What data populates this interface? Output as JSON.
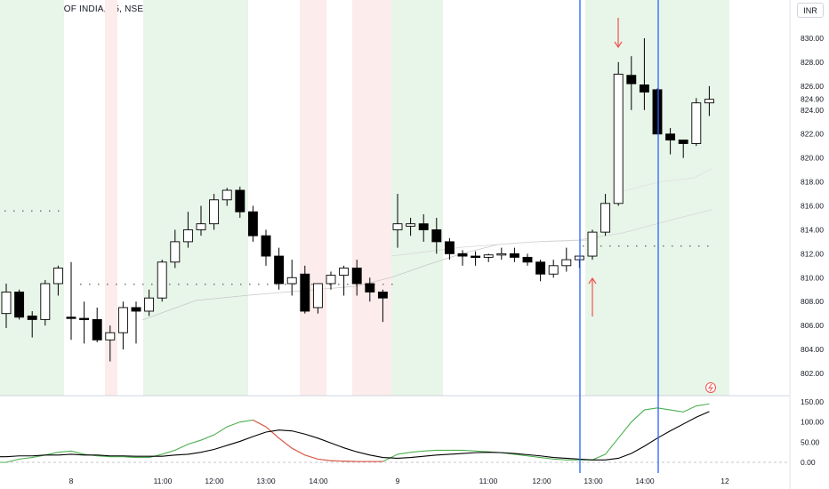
{
  "chart_title": "STATE BANK OF INDIA, 15, NSE",
  "currency_button": "INR",
  "price_axis": [
    "830.00",
    "828.00",
    "826.00",
    "824.90",
    "824.00",
    "822.00",
    "820.00",
    "818.00",
    "816.00",
    "814.00",
    "812.00",
    "810.00",
    "808.00",
    "806.00",
    "804.00",
    "802.00"
  ],
  "osc_axis": [
    "150.00",
    "100.00",
    "50.00",
    "0.00"
  ],
  "time_axis": [
    "8",
    "11:00",
    "12:00",
    "13:00",
    "14:00",
    "9",
    "11:00",
    "12:00",
    "13:00",
    "14:00",
    "12"
  ],
  "colors": {
    "up": "#ffffff",
    "down": "#000000",
    "vline": "#2962ff",
    "arrow": "#ef5350",
    "green_zone": "#e8f5e9",
    "red_zone": "#fdecec",
    "osc_fast": "#4caf50",
    "osc_slow": "#000000"
  },
  "chart_data": {
    "type": "candlestick",
    "ylim": [
      801,
      831
    ],
    "candles": [
      [
        807.0,
        809.5,
        805.8,
        808.8
      ],
      [
        808.8,
        809.0,
        806.5,
        806.7
      ],
      [
        806.8,
        807.2,
        805.0,
        806.5
      ],
      [
        806.5,
        809.8,
        806.0,
        809.5
      ],
      [
        809.5,
        811.0,
        808.5,
        810.8
      ],
      [
        806.7,
        811.3,
        804.8,
        806.6
      ],
      [
        806.6,
        808.0,
        804.5,
        806.5
      ],
      [
        806.5,
        807.5,
        804.6,
        804.8
      ],
      [
        804.8,
        806.0,
        803.0,
        805.4
      ],
      [
        805.4,
        808.0,
        804.0,
        807.5
      ],
      [
        807.5,
        808.0,
        804.5,
        807.2
      ],
      [
        807.2,
        809.0,
        806.8,
        808.3
      ],
      [
        808.3,
        811.5,
        808.0,
        811.3
      ],
      [
        811.3,
        814.0,
        810.8,
        813.0
      ],
      [
        813.0,
        815.5,
        812.5,
        814.0
      ],
      [
        814.0,
        816.0,
        813.5,
        814.5
      ],
      [
        814.5,
        817.0,
        814.0,
        816.5
      ],
      [
        816.5,
        817.5,
        816.0,
        817.3
      ],
      [
        817.3,
        817.6,
        815.0,
        815.5
      ],
      [
        815.5,
        816.0,
        813.0,
        813.5
      ],
      [
        813.5,
        814.0,
        811.0,
        811.8
      ],
      [
        811.8,
        812.5,
        809.0,
        809.5
      ],
      [
        809.5,
        811.5,
        808.5,
        810.0
      ],
      [
        810.3,
        811.0,
        807.0,
        807.2
      ],
      [
        807.5,
        809.5,
        807.0,
        809.5
      ],
      [
        809.5,
        810.5,
        809.0,
        810.2
      ],
      [
        810.2,
        811.0,
        808.5,
        810.8
      ],
      [
        810.8,
        811.5,
        808.5,
        809.5
      ],
      [
        809.5,
        810.0,
        808.0,
        808.8
      ],
      [
        808.8,
        809.0,
        806.3,
        808.3
      ],
      [
        814.0,
        817.0,
        812.5,
        814.5
      ],
      [
        814.3,
        815.0,
        813.5,
        814.5
      ],
      [
        814.5,
        815.3,
        813.0,
        814.0
      ],
      [
        814.0,
        815.0,
        812.0,
        813.0
      ],
      [
        813.0,
        813.3,
        811.5,
        812.0
      ],
      [
        812.0,
        812.3,
        811.0,
        811.8
      ],
      [
        811.8,
        812.2,
        811.0,
        811.7
      ],
      [
        811.7,
        812.0,
        811.3,
        811.9
      ],
      [
        811.9,
        812.5,
        811.5,
        812.0
      ],
      [
        812.0,
        812.5,
        811.3,
        811.7
      ],
      [
        811.7,
        812.0,
        811.0,
        811.3
      ],
      [
        811.3,
        811.5,
        809.7,
        810.3
      ],
      [
        810.3,
        811.5,
        810.0,
        811.0
      ],
      [
        811.0,
        812.5,
        810.5,
        811.5
      ],
      [
        811.5,
        811.8,
        810.8,
        811.8
      ],
      [
        811.8,
        814.0,
        811.5,
        813.8
      ],
      [
        813.8,
        817.0,
        813.5,
        816.2
      ],
      [
        816.2,
        828.0,
        816.0,
        827.0
      ],
      [
        826.9,
        828.5,
        824.0,
        826.2
      ],
      [
        826.1,
        830.0,
        824.0,
        825.5
      ],
      [
        825.7,
        825.8,
        822.0,
        822.0
      ],
      [
        822.0,
        822.5,
        820.3,
        821.5
      ],
      [
        821.5,
        821.5,
        820.0,
        821.2
      ],
      [
        821.2,
        825.0,
        821.0,
        824.6
      ],
      [
        824.6,
        826.0,
        823.5,
        824.9
      ]
    ],
    "oscillator": {
      "axis_range": [
        -10,
        155
      ],
      "fast": [
        0,
        8,
        12,
        18,
        25,
        28,
        20,
        16,
        14,
        14,
        12,
        12,
        20,
        30,
        45,
        55,
        68,
        88,
        100,
        105,
        88,
        60,
        35,
        18,
        8,
        4,
        3,
        2,
        2,
        2,
        20,
        25,
        28,
        30,
        30,
        30,
        28,
        26,
        24,
        20,
        16,
        12,
        8,
        6,
        6,
        6,
        20,
        60,
        100,
        130,
        135,
        130,
        125,
        140,
        145
      ],
      "slow": [
        14,
        16,
        16,
        18,
        18,
        20,
        18,
        18,
        16,
        16,
        15,
        15,
        15,
        18,
        20,
        25,
        32,
        42,
        52,
        64,
        75,
        80,
        78,
        70,
        60,
        48,
        36,
        26,
        18,
        12,
        10,
        12,
        15,
        18,
        20,
        22,
        24,
        25,
        24,
        22,
        19,
        16,
        12,
        10,
        8,
        6,
        6,
        10,
        22,
        40,
        60,
        78,
        95,
        112,
        126
      ]
    },
    "markers": {
      "down_arrow": "sell",
      "up_arrow": "buy",
      "flash_icon": "lightning"
    }
  }
}
